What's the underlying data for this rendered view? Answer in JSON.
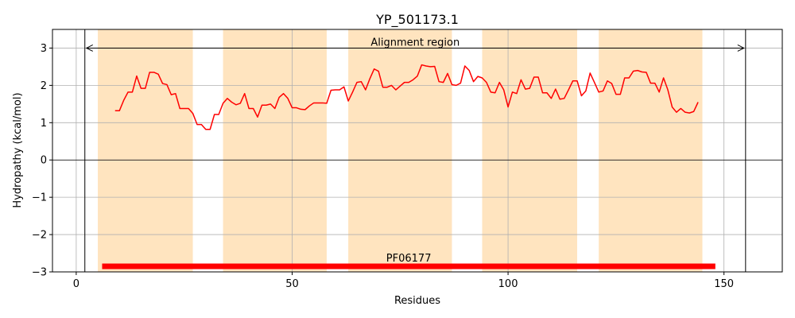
{
  "chart_data": {
    "type": "line",
    "title": "YP_501173.1",
    "xlabel": "Residues",
    "ylabel": "Hydropathy (kcal/mol)",
    "xlim": [
      -5.5,
      163.5
    ],
    "ylim": [
      -3,
      3.5
    ],
    "xticks": [
      0,
      50,
      100,
      150
    ],
    "yticks": [
      -3,
      -2,
      -1,
      0,
      1,
      2,
      3
    ],
    "grid": true,
    "colors": {
      "line": "#ff0000",
      "band": "#ffe4bf",
      "domain_bar": "#ff0000",
      "grid": "#b0b0b0"
    },
    "shaded_regions": [
      [
        5,
        27
      ],
      [
        34,
        58
      ],
      [
        63,
        87
      ],
      [
        94,
        116
      ],
      [
        121,
        145
      ]
    ],
    "alignment_region": {
      "label": "Alignment region",
      "start": 2,
      "end": 155,
      "y": 3
    },
    "domain": {
      "label": "PF06177",
      "start": 6,
      "end": 148,
      "y": -2.85
    },
    "series": [
      {
        "x": [
          9,
          10,
          11,
          12,
          13,
          14,
          15,
          16,
          17,
          18,
          19,
          20,
          21,
          22,
          23,
          24,
          25,
          26,
          27,
          28,
          29,
          30,
          31,
          32,
          33,
          34,
          35,
          36,
          37,
          38,
          39,
          40,
          41,
          42,
          43,
          44,
          45,
          46,
          47,
          48,
          49,
          50,
          51,
          52,
          53,
          54,
          55,
          56,
          57,
          58,
          59,
          60,
          61,
          62,
          63,
          64,
          65,
          66,
          67,
          68,
          69,
          70,
          71,
          72,
          73,
          74,
          75,
          76,
          77,
          78,
          79,
          80,
          81,
          82,
          83,
          84,
          85,
          86,
          87,
          88,
          89,
          90,
          91,
          92,
          93,
          94,
          95,
          96,
          97,
          98,
          99,
          100,
          101,
          102,
          103,
          104,
          105,
          106,
          107,
          108,
          109,
          110,
          111,
          112,
          113,
          114,
          115,
          116,
          117,
          118,
          119,
          120,
          121,
          122,
          123,
          124,
          125,
          126,
          127,
          128,
          129,
          130,
          131,
          132,
          133,
          134,
          135,
          136,
          137,
          138,
          139,
          140,
          141,
          142,
          143,
          144
        ],
        "values": [
          1.32,
          1.32,
          1.6,
          1.82,
          1.82,
          2.25,
          1.92,
          1.92,
          2.35,
          2.35,
          2.3,
          2.05,
          2.02,
          1.75,
          1.78,
          1.38,
          1.38,
          1.38,
          1.25,
          0.95,
          0.95,
          0.82,
          0.82,
          1.22,
          1.22,
          1.52,
          1.65,
          1.55,
          1.48,
          1.52,
          1.78,
          1.38,
          1.38,
          1.15,
          1.47,
          1.47,
          1.5,
          1.38,
          1.68,
          1.78,
          1.65,
          1.4,
          1.4,
          1.36,
          1.35,
          1.45,
          1.53,
          1.53,
          1.53,
          1.52,
          1.87,
          1.88,
          1.88,
          1.96,
          1.58,
          1.82,
          2.08,
          2.1,
          1.88,
          2.18,
          2.44,
          2.38,
          1.95,
          1.95,
          2.0,
          1.88,
          1.98,
          2.08,
          2.08,
          2.15,
          2.25,
          2.55,
          2.52,
          2.5,
          2.51,
          2.1,
          2.08,
          2.32,
          2.02,
          2.0,
          2.06,
          2.52,
          2.4,
          2.1,
          2.24,
          2.2,
          2.08,
          1.82,
          1.8,
          2.08,
          1.88,
          1.42,
          1.82,
          1.78,
          2.15,
          1.9,
          1.92,
          2.22,
          2.22,
          1.8,
          1.8,
          1.65,
          1.9,
          1.63,
          1.65,
          1.88,
          2.12,
          2.12,
          1.72,
          1.85,
          2.33,
          2.08,
          1.82,
          1.85,
          2.12,
          2.05,
          1.76,
          1.76,
          2.2,
          2.2,
          2.38,
          2.4,
          2.36,
          2.35,
          2.06,
          2.06,
          1.82,
          2.2,
          1.88,
          1.42,
          1.28,
          1.38,
          1.28,
          1.26,
          1.3,
          1.55
        ]
      }
    ]
  }
}
